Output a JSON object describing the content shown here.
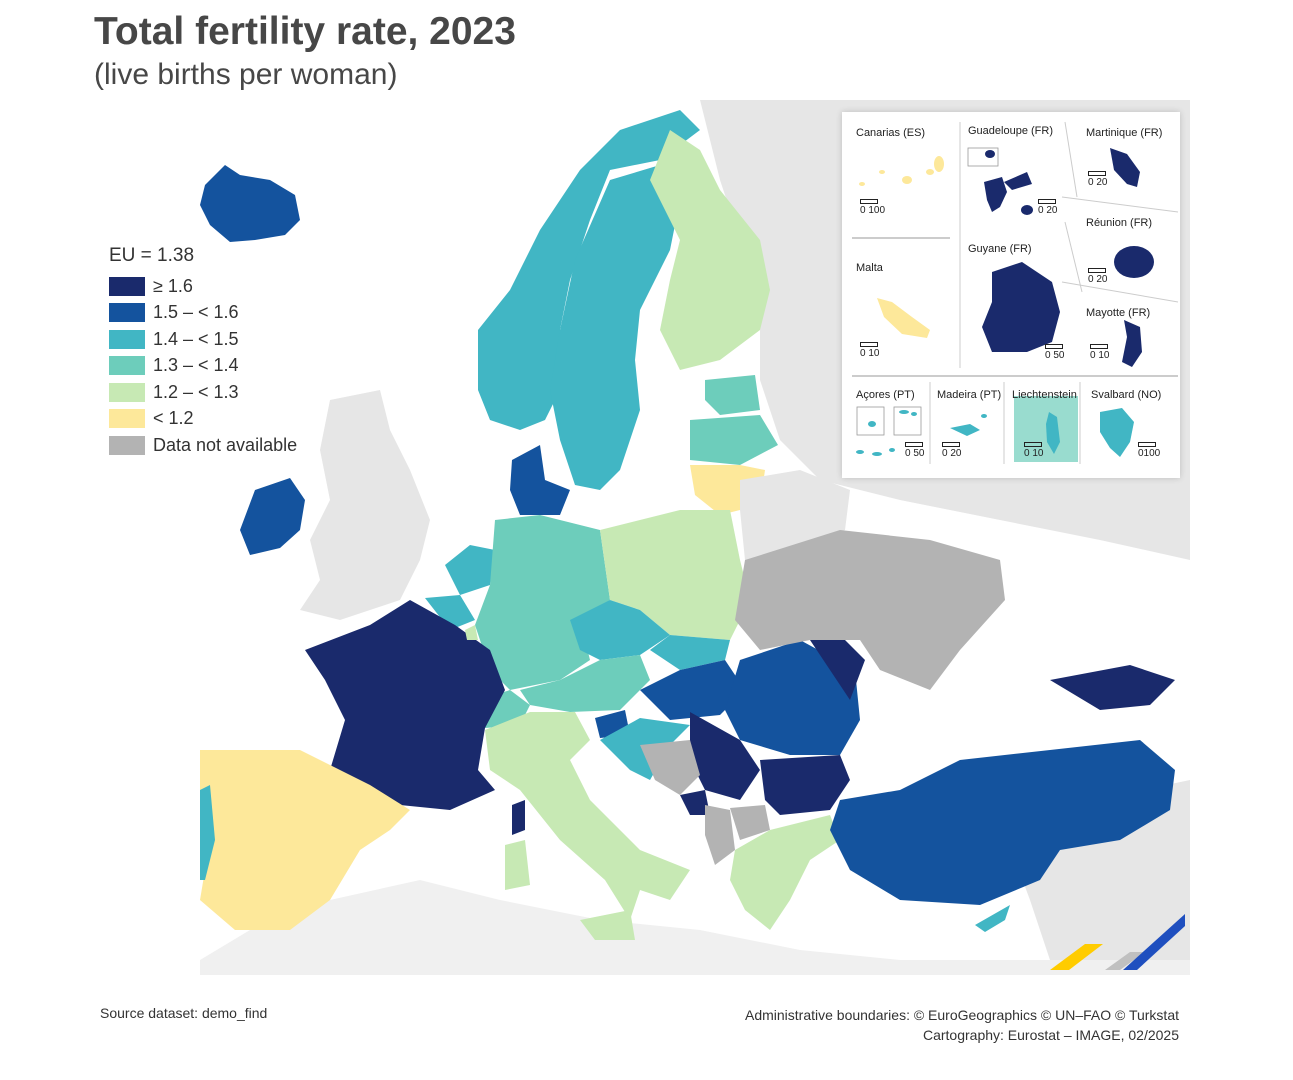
{
  "title": "Total fertility rate, 2023",
  "subtitle": "(live births per woman)",
  "legend": {
    "title": "EU = 1.38",
    "classes": [
      {
        "label": "≥ 1.6",
        "color": "#1a2a6c"
      },
      {
        "label": "1.5 – < 1.6",
        "color": "#14539e"
      },
      {
        "label": "1.4 – < 1.5",
        "color": "#41b6c4"
      },
      {
        "label": "1.3 – < 1.4",
        "color": "#6dcdbb"
      },
      {
        "label": "1.2 – < 1.3",
        "color": "#c7e9b4"
      },
      {
        "label": "< 1.2",
        "color": "#fde89a"
      },
      {
        "label": "Data not available",
        "color": "#b3b3b3"
      }
    ]
  },
  "insets": {
    "canarias": "Canarias (ES)",
    "guadeloupe": "Guadeloupe (FR)",
    "martinique": "Martinique (FR)",
    "reunion": "Réunion (FR)",
    "guyane": "Guyane (FR)",
    "malta": "Malta",
    "mayotte": "Mayotte (FR)",
    "acores": "Açores (PT)",
    "madeira": "Madeira (PT)",
    "liechtenstein": "Liechtenstein",
    "svalbard": "Svalbard (NO)"
  },
  "scales": {
    "canarias": "0 100",
    "guadeloupe": "0 20",
    "martinique": "0 20",
    "reunion": "0 20",
    "guyane": "0 50",
    "malta": "0 10",
    "mayotte": "0 10",
    "acores": "0 50",
    "madeira": "0 20",
    "liechtenstein": "0 10",
    "svalbard": "0100"
  },
  "source": "Source dataset: demo_find",
  "credits": {
    "line1": "Administrative boundaries: © EuroGeographics © UN–FAO © Turkstat",
    "line2": "Cartography: Eurostat – IMAGE, 02/2025"
  },
  "colors": {
    "background_land": "#e6e6e6",
    "sea": "#ffffff"
  }
}
